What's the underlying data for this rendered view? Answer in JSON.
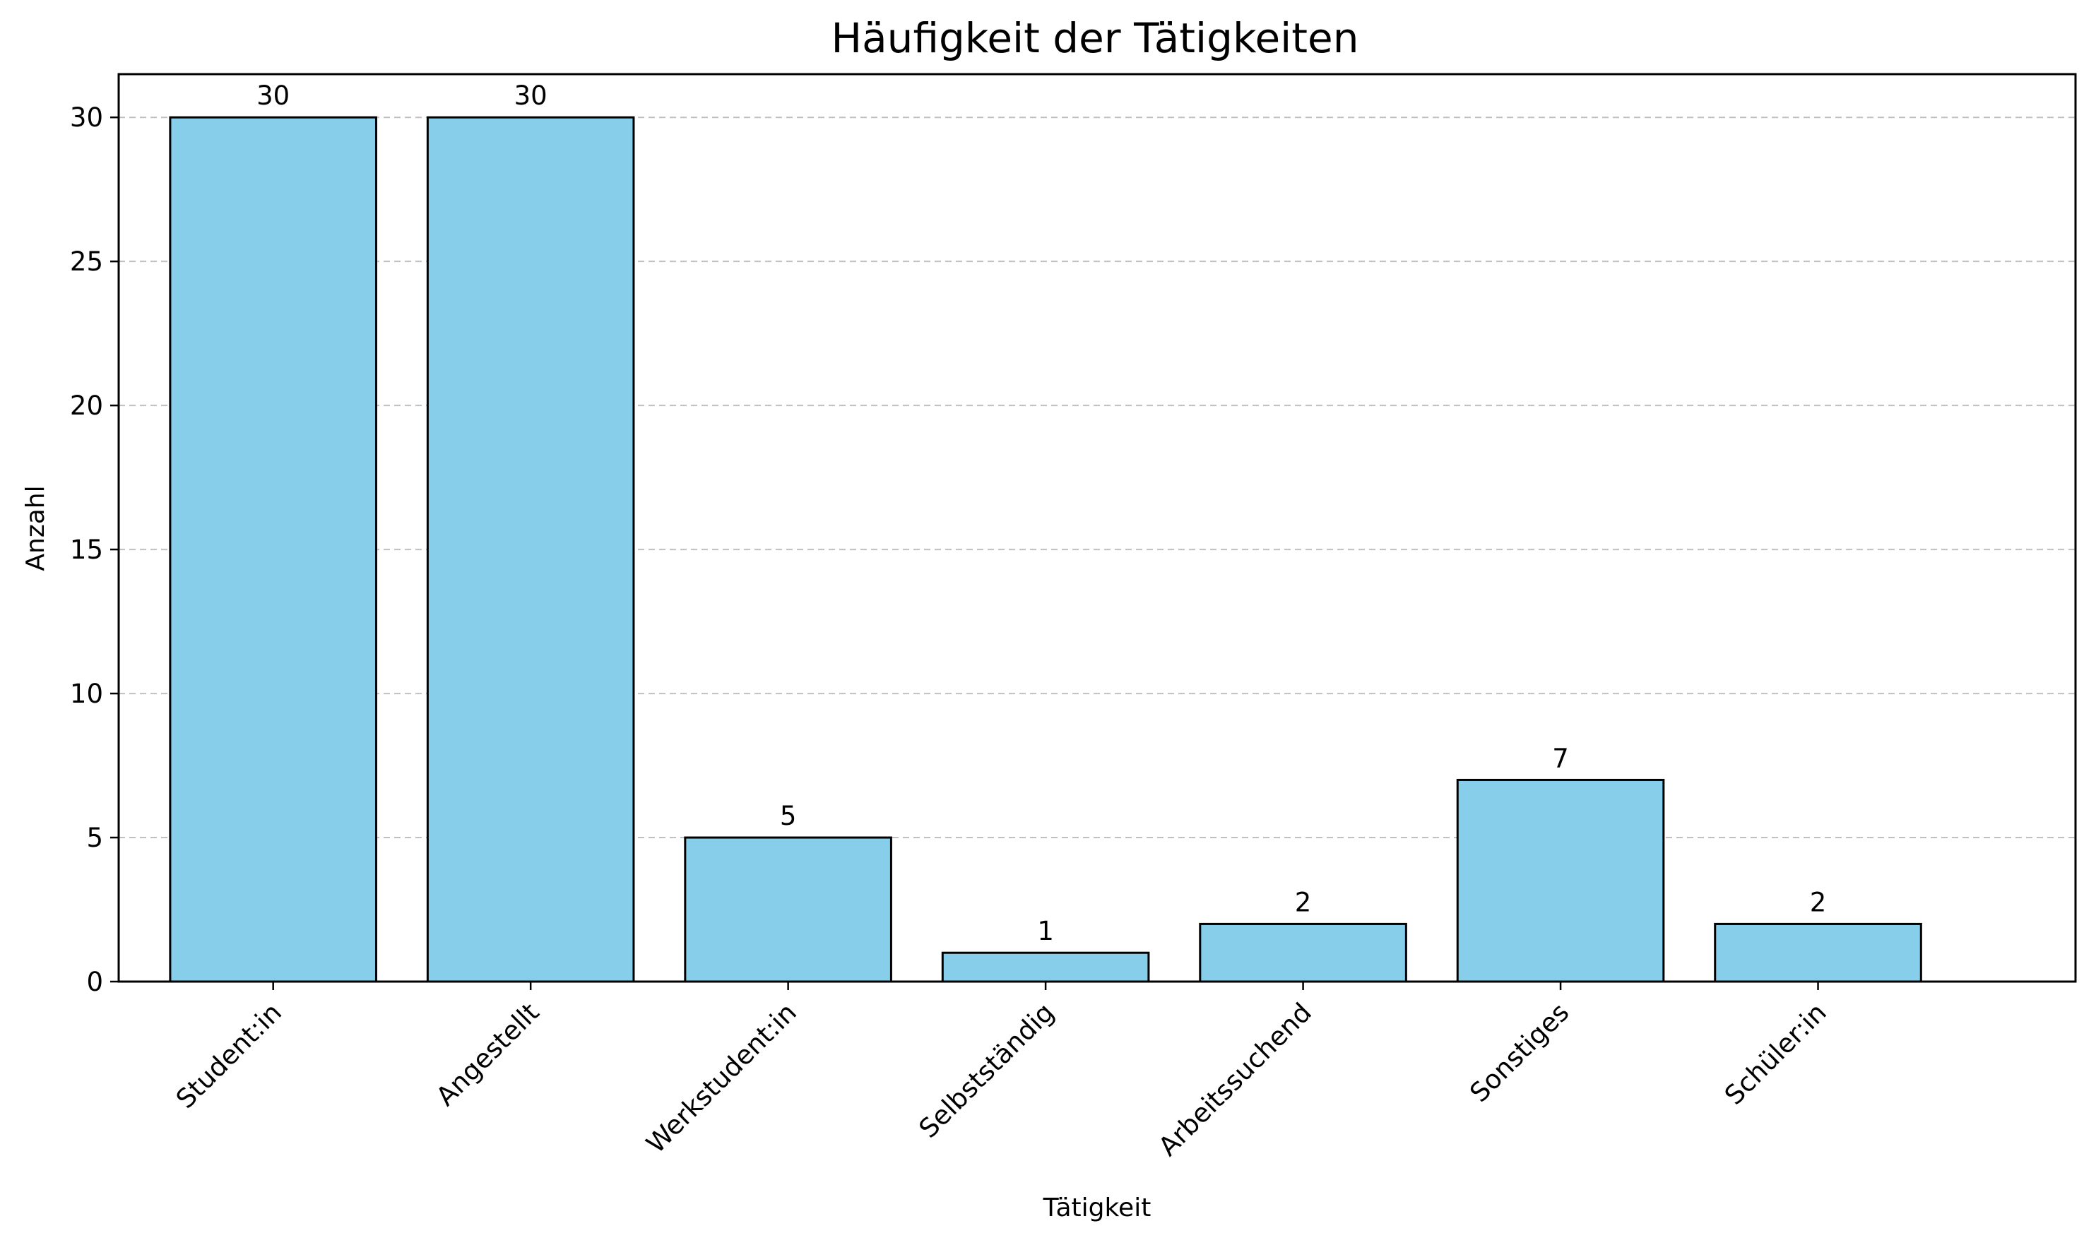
{
  "chart_data": {
    "type": "bar",
    "title": "Häufigkeit der Tätigkeiten",
    "xlabel": "Tätigkeit",
    "ylabel": "Anzahl",
    "categories": [
      "Student:in",
      "Angestellt",
      "Werkstudent:in",
      "Selbstständig",
      "Arbeitssuchend",
      "Sonstiges",
      "Schüler:in"
    ],
    "values": [
      30,
      30,
      5,
      1,
      2,
      7,
      2
    ],
    "data_labels": [
      "30",
      "30",
      "5",
      "1",
      "2",
      "7",
      "2"
    ],
    "yticks": [
      0,
      5,
      10,
      15,
      20,
      25,
      30
    ],
    "ytick_labels": [
      "0",
      "5",
      "10",
      "15",
      "20",
      "25",
      "30"
    ],
    "ylim": [
      0,
      31.5
    ],
    "grid": "y-axis dashed",
    "legend": "none",
    "bar_color": "#87ceeb",
    "bar_edge_color": "#000000",
    "grid_color": "#c0c0c0",
    "xtick_rotation": "45 degrees"
  }
}
